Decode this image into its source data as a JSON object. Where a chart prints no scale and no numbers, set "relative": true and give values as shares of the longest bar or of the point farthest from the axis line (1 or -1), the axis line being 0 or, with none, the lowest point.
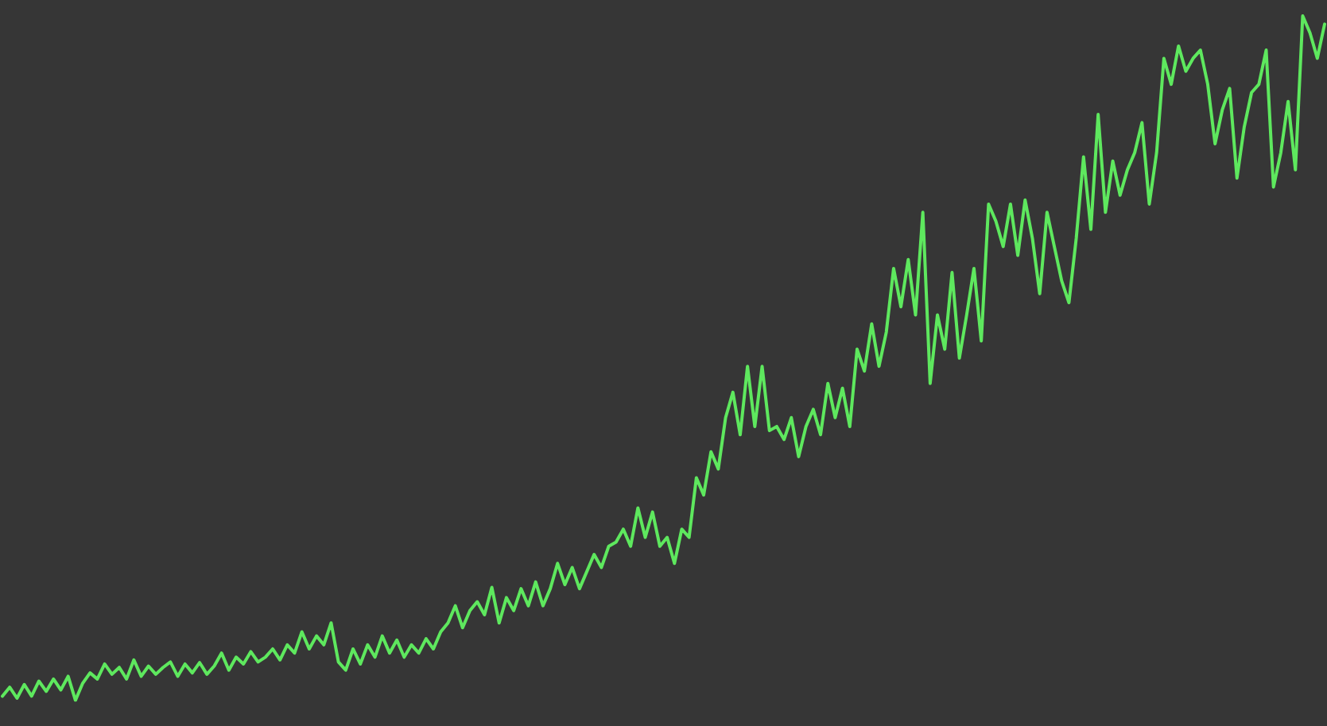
{
  "chart_data": {
    "type": "line",
    "relative": true,
    "marker": "none",
    "line_style": "solid",
    "categories": [
      null,
      null,
      null,
      null,
      null,
      null,
      null,
      null,
      null,
      null,
      null,
      null,
      null,
      null,
      null,
      null,
      null,
      null,
      null,
      null,
      null,
      null,
      null,
      null,
      null,
      null,
      null,
      null,
      null,
      null,
      null,
      null,
      null,
      null,
      null,
      null,
      null,
      null,
      null,
      null,
      null,
      null,
      null,
      null,
      null,
      null,
      null,
      null,
      null,
      null,
      null,
      null,
      null,
      null,
      null,
      null,
      null,
      null,
      null,
      null,
      null,
      null,
      null,
      null,
      null,
      null,
      null,
      null,
      null,
      null,
      null,
      null,
      null,
      null,
      null,
      null,
      null,
      null,
      null,
      null,
      null,
      null,
      null,
      null,
      null,
      null,
      null,
      null,
      null,
      null,
      null,
      null,
      null,
      null,
      null,
      null,
      null,
      null,
      null,
      null,
      null,
      null,
      null,
      null,
      null,
      null,
      null,
      null,
      null,
      null,
      null,
      null,
      null,
      null,
      null,
      null,
      null,
      null,
      null,
      null,
      null,
      null,
      null,
      null,
      null,
      null,
      null,
      null,
      null,
      null,
      null,
      null,
      null,
      null,
      null,
      null,
      null,
      null,
      null,
      null,
      null,
      null,
      null,
      null,
      null,
      null,
      null,
      null,
      null,
      null,
      null,
      null,
      null,
      null,
      null,
      null,
      null,
      null,
      null,
      null,
      null,
      null,
      null,
      null,
      null,
      null,
      null,
      null,
      null,
      null,
      null,
      null,
      null,
      null,
      null,
      null,
      null,
      null,
      null,
      null,
      null,
      null
    ],
    "series": [
      {
        "color": "#5ee85e",
        "values": [
          0.006,
          0.019,
          0.003,
          0.023,
          0.006,
          0.028,
          0.013,
          0.031,
          0.015,
          0.035,
          0,
          0.025,
          0.04,
          0.031,
          0.053,
          0.038,
          0.048,
          0.031,
          0.059,
          0.035,
          0.05,
          0.038,
          0.048,
          0.056,
          0.035,
          0.053,
          0.04,
          0.055,
          0.038,
          0.05,
          0.069,
          0.044,
          0.063,
          0.053,
          0.071,
          0.056,
          0.063,
          0.075,
          0.059,
          0.081,
          0.069,
          0.1,
          0.075,
          0.094,
          0.081,
          0.113,
          0.056,
          0.044,
          0.075,
          0.053,
          0.081,
          0.063,
          0.094,
          0.069,
          0.088,
          0.063,
          0.081,
          0.069,
          0.09,
          0.075,
          0.1,
          0.113,
          0.138,
          0.106,
          0.131,
          0.144,
          0.125,
          0.165,
          0.113,
          0.15,
          0.131,
          0.163,
          0.138,
          0.173,
          0.138,
          0.163,
          0.2,
          0.169,
          0.194,
          0.163,
          0.188,
          0.213,
          0.194,
          0.225,
          0.231,
          0.25,
          0.225,
          0.281,
          0.238,
          0.275,
          0.225,
          0.238,
          0.2,
          0.25,
          0.238,
          0.325,
          0.3,
          0.363,
          0.338,
          0.413,
          0.45,
          0.388,
          0.488,
          0.4,
          0.488,
          0.394,
          0.4,
          0.381,
          0.413,
          0.356,
          0.4,
          0.425,
          0.388,
          0.463,
          0.413,
          0.456,
          0.4,
          0.513,
          0.481,
          0.55,
          0.488,
          0.538,
          0.631,
          0.575,
          0.644,
          0.563,
          0.713,
          0.463,
          0.563,
          0.513,
          0.625,
          0.5,
          0.563,
          0.631,
          0.525,
          0.725,
          0.7,
          0.663,
          0.725,
          0.65,
          0.731,
          0.675,
          0.594,
          0.713,
          0.663,
          0.613,
          0.581,
          0.675,
          0.794,
          0.688,
          0.856,
          0.713,
          0.788,
          0.738,
          0.775,
          0.8,
          0.844,
          0.725,
          0.8,
          0.938,
          0.9,
          0.956,
          0.919,
          0.938,
          0.95,
          0.9,
          0.813,
          0.863,
          0.894,
          0.763,
          0.838,
          0.888,
          0.9,
          0.95,
          0.75,
          0.8,
          0.875,
          0.775,
          1,
          0.975,
          0.938,
          0.988
        ]
      }
    ]
  }
}
